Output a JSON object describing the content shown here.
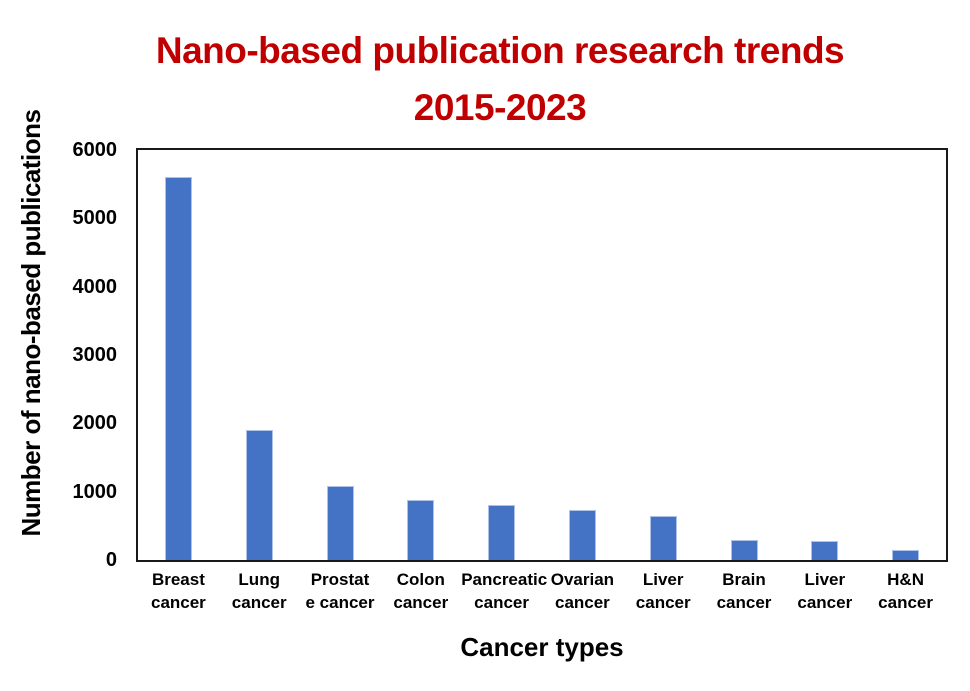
{
  "figure": {
    "title_line1": "Nano-based publication research trends",
    "title_line2": "2015-2023",
    "x_axis_title": "Cancer types",
    "y_axis_title": "Number of nano-based publications"
  },
  "colors": {
    "title_red": "#C00000",
    "bar_blue": "#4472C4",
    "axis_black": "#191919",
    "text_black": "#000000"
  },
  "chart_data": {
    "type": "bar",
    "title": "Nano-based publication research trends 2015-2023",
    "xlabel": "Cancer types",
    "ylabel": "Number of nano-based publications",
    "categories": [
      "Breast cancer",
      "Lung cancer",
      "Prostate cancer",
      "Colon cancer",
      "Pancreatic cancer",
      "Ovarian cancer",
      "Liver cancer",
      "Brain cancer",
      "Liver cancer",
      "H&N cancer"
    ],
    "category_label_lines": [
      [
        "Breast",
        "cancer"
      ],
      [
        "Lung",
        "cancer"
      ],
      [
        "Prostat",
        "e cancer"
      ],
      [
        "Colon",
        "cancer"
      ],
      [
        "Pancreatic",
        "cancer"
      ],
      [
        "Ovarian",
        "cancer"
      ],
      [
        "Liver",
        "cancer"
      ],
      [
        "Brain",
        "cancer"
      ],
      [
        "Liver",
        "cancer"
      ],
      [
        "H&N",
        "cancer"
      ]
    ],
    "values": [
      5600,
      1900,
      1080,
      880,
      800,
      730,
      650,
      290,
      280,
      140
    ],
    "ylim": [
      0,
      6000
    ],
    "yticks": [
      0,
      1000,
      2000,
      3000,
      4000,
      5000,
      6000
    ],
    "grid": false,
    "legend": false,
    "bar_color": "#4472C4",
    "title_color": "#C00000"
  }
}
